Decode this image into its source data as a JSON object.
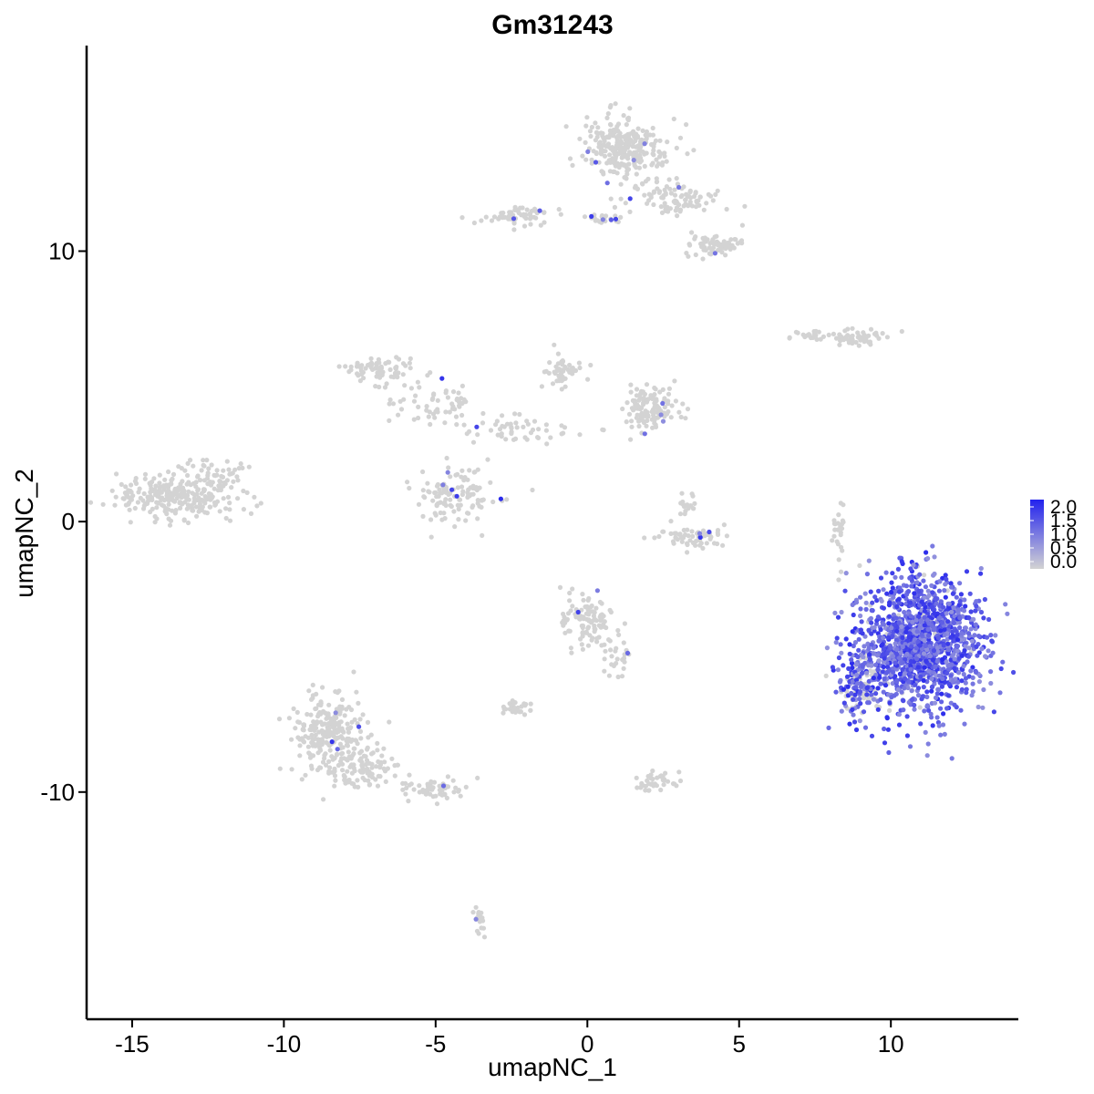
{
  "chart_data": {
    "type": "scatter",
    "title": "Gm31243",
    "xlabel": "umapNC_1",
    "ylabel": "umapNC_2",
    "xlim": [
      -16.5,
      14.2
    ],
    "ylim": [
      -18.4,
      17.6
    ],
    "xticks": [
      -15,
      -10,
      -5,
      0,
      5,
      10
    ],
    "yticks": [
      -10,
      0,
      10
    ],
    "grid": false,
    "legend": {
      "placement": "right",
      "ticks": [
        "2.0",
        "1.5",
        "1.0",
        "0.5",
        "0.0"
      ],
      "color_low": "#d3d3d3",
      "color_high": "#2222ee",
      "range": [
        0,
        2.0
      ]
    },
    "background_point_color": "#d3d3d3",
    "clusters": [
      {
        "cx": -13.5,
        "cy": 1.0,
        "rx": 1.8,
        "ry": 0.8,
        "n": 260,
        "expr": 0
      },
      {
        "cx": -12.0,
        "cy": 1.7,
        "rx": 0.8,
        "ry": 0.6,
        "n": 40,
        "expr": 0
      },
      {
        "cx": 1.2,
        "cy": 13.8,
        "rx": 1.2,
        "ry": 1.0,
        "n": 280,
        "expr": 0.02
      },
      {
        "cx": 2.8,
        "cy": 12.0,
        "rx": 1.4,
        "ry": 0.6,
        "n": 100,
        "expr": 0.02
      },
      {
        "cx": 4.2,
        "cy": 10.2,
        "rx": 1.0,
        "ry": 0.4,
        "n": 70,
        "expr": 0.02
      },
      {
        "cx": -2.3,
        "cy": 11.3,
        "rx": 1.2,
        "ry": 0.35,
        "n": 60,
        "expr": 0.05
      },
      {
        "cx": 0.5,
        "cy": 11.2,
        "rx": 0.8,
        "ry": 0.2,
        "n": 25,
        "expr": 0.05
      },
      {
        "cx": 9.0,
        "cy": 6.8,
        "rx": 0.8,
        "ry": 0.3,
        "n": 55,
        "expr": 0
      },
      {
        "cx": 7.3,
        "cy": 6.9,
        "rx": 0.6,
        "ry": 0.2,
        "n": 20,
        "expr": 0.05
      },
      {
        "cx": -6.8,
        "cy": 5.6,
        "rx": 0.9,
        "ry": 0.5,
        "n": 70,
        "expr": 0.02
      },
      {
        "cx": -5.0,
        "cy": 4.5,
        "rx": 1.2,
        "ry": 0.8,
        "n": 60,
        "expr": 0.02
      },
      {
        "cx": -4.4,
        "cy": 0.9,
        "rx": 1.2,
        "ry": 1.0,
        "n": 120,
        "expr": 0.05
      },
      {
        "cx": 2.0,
        "cy": 4.2,
        "rx": 0.9,
        "ry": 0.8,
        "n": 130,
        "expr": 0.03
      },
      {
        "cx": -0.8,
        "cy": 5.5,
        "rx": 0.6,
        "ry": 0.5,
        "n": 50,
        "expr": 0.02
      },
      {
        "cx": -2.3,
        "cy": 3.4,
        "rx": 1.5,
        "ry": 0.5,
        "n": 50,
        "expr": 0.04
      },
      {
        "cx": 3.5,
        "cy": -0.6,
        "rx": 1.0,
        "ry": 0.35,
        "n": 60,
        "expr": 0.02
      },
      {
        "cx": 3.2,
        "cy": 0.6,
        "rx": 0.4,
        "ry": 0.5,
        "n": 20,
        "expr": 0
      },
      {
        "cx": 0.0,
        "cy": -3.7,
        "rx": 0.8,
        "ry": 0.8,
        "n": 110,
        "expr": 0.05
      },
      {
        "cx": 0.9,
        "cy": -4.9,
        "rx": 0.4,
        "ry": 0.8,
        "n": 30,
        "expr": 0.03
      },
      {
        "cx": -2.4,
        "cy": -6.9,
        "rx": 0.4,
        "ry": 0.25,
        "n": 30,
        "expr": 0.05
      },
      {
        "cx": -8.5,
        "cy": -7.8,
        "rx": 1.1,
        "ry": 1.4,
        "n": 260,
        "expr": 0.01
      },
      {
        "cx": -7.2,
        "cy": -9.2,
        "rx": 1.2,
        "ry": 0.6,
        "n": 90,
        "expr": 0.01
      },
      {
        "cx": -5.0,
        "cy": -9.9,
        "rx": 1.2,
        "ry": 0.4,
        "n": 60,
        "expr": 0.01
      },
      {
        "cx": 2.3,
        "cy": -9.6,
        "rx": 0.7,
        "ry": 0.3,
        "n": 40,
        "expr": 0
      },
      {
        "cx": 11.0,
        "cy": -4.5,
        "rx": 1.8,
        "ry": 2.2,
        "n": 1400,
        "expr": 0.95
      },
      {
        "cx": 9.0,
        "cy": -6.0,
        "rx": 0.8,
        "ry": 1.2,
        "n": 150,
        "expr": 0.6
      },
      {
        "cx": -3.5,
        "cy": -14.7,
        "rx": 0.2,
        "ry": 0.6,
        "n": 20,
        "expr": 0.05
      },
      {
        "cx": 8.3,
        "cy": -0.3,
        "rx": 0.2,
        "ry": 1.2,
        "n": 25,
        "expr": 0.05
      }
    ]
  }
}
